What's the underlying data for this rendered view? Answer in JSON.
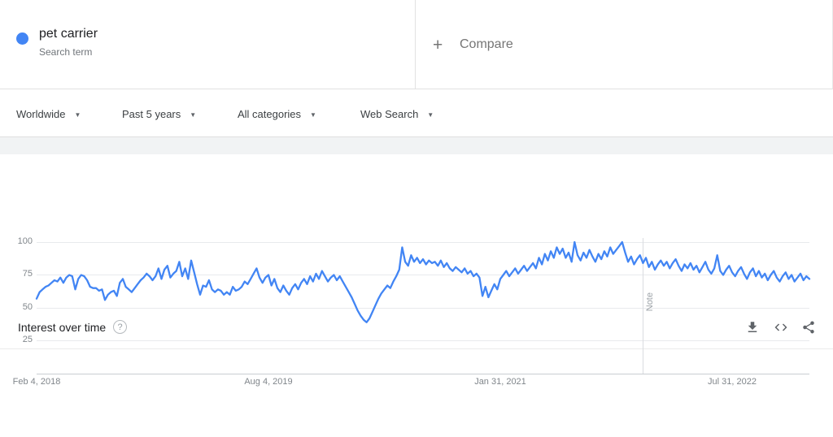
{
  "term_card": {
    "term": "pet carrier",
    "subtitle": "Search term",
    "dot_color": "#4285f4"
  },
  "compare": {
    "label": "Compare"
  },
  "icons": {
    "plus": "+",
    "dropdown_arrow": "▼",
    "help": "?"
  },
  "filters": {
    "geo": "Worldwide",
    "time": "Past 5 years",
    "category": "All categories",
    "property": "Web Search"
  },
  "panel": {
    "title": "Interest over time"
  },
  "chart_data": {
    "type": "line",
    "title": "Interest over time",
    "series_name": "pet carrier",
    "legend_position": "none",
    "grid": true,
    "xticklabels": [
      "Feb 4, 2018",
      "Aug 4, 2019",
      "Jan 31, 2021",
      "Jul 31, 2022"
    ],
    "xtick_weeks": [
      0,
      78,
      156,
      234
    ],
    "yticks": [
      100,
      75,
      50,
      25
    ],
    "ylim": [
      0,
      100
    ],
    "note_week": 204,
    "note_label": "Note",
    "line_color": "#4285f4",
    "values": [
      57,
      62,
      64,
      66,
      67,
      69,
      71,
      70,
      73,
      69,
      73,
      75,
      74,
      64,
      72,
      75,
      74,
      71,
      66,
      65,
      65,
      63,
      64,
      56,
      60,
      62,
      63,
      59,
      69,
      72,
      66,
      64,
      62,
      65,
      68,
      71,
      73,
      76,
      74,
      71,
      74,
      80,
      72,
      79,
      82,
      73,
      76,
      78,
      85,
      74,
      80,
      72,
      86,
      77,
      68,
      60,
      67,
      66,
      71,
      64,
      62,
      64,
      63,
      60,
      62,
      60,
      66,
      63,
      64,
      66,
      70,
      68,
      72,
      76,
      80,
      73,
      69,
      73,
      75,
      67,
      72,
      65,
      62,
      67,
      63,
      60,
      65,
      68,
      64,
      69,
      72,
      68,
      74,
      70,
      76,
      72,
      78,
      74,
      70,
      73,
      75,
      71,
      74,
      70,
      66,
      62,
      58,
      53,
      48,
      44,
      41,
      39,
      42,
      47,
      52,
      57,
      61,
      64,
      67,
      65,
      70,
      74,
      79,
      96,
      85,
      82,
      90,
      85,
      88,
      84,
      87,
      83,
      86,
      84,
      85,
      82,
      86,
      81,
      84,
      80,
      78,
      81,
      79,
      77,
      80,
      76,
      78,
      74,
      76,
      73,
      59,
      66,
      58,
      63,
      68,
      64,
      72,
      75,
      78,
      74,
      77,
      80,
      76,
      79,
      82,
      78,
      81,
      84,
      80,
      88,
      83,
      91,
      86,
      93,
      88,
      96,
      91,
      95,
      88,
      92,
      85,
      100,
      90,
      86,
      92,
      88,
      94,
      89,
      85,
      91,
      87,
      93,
      89,
      96,
      91,
      94,
      97,
      100,
      92,
      85,
      89,
      83,
      87,
      90,
      84,
      88,
      81,
      85,
      79,
      83,
      86,
      82,
      85,
      80,
      84,
      87,
      82,
      78,
      83,
      80,
      84,
      79,
      82,
      77,
      81,
      85,
      79,
      76,
      80,
      90,
      78,
      75,
      79,
      82,
      77,
      74,
      78,
      81,
      76,
      72,
      77,
      80,
      74,
      78,
      73,
      76,
      71,
      75,
      78,
      73,
      70,
      74,
      77,
      72,
      75,
      70,
      73,
      76,
      71,
      74,
      72
    ]
  }
}
